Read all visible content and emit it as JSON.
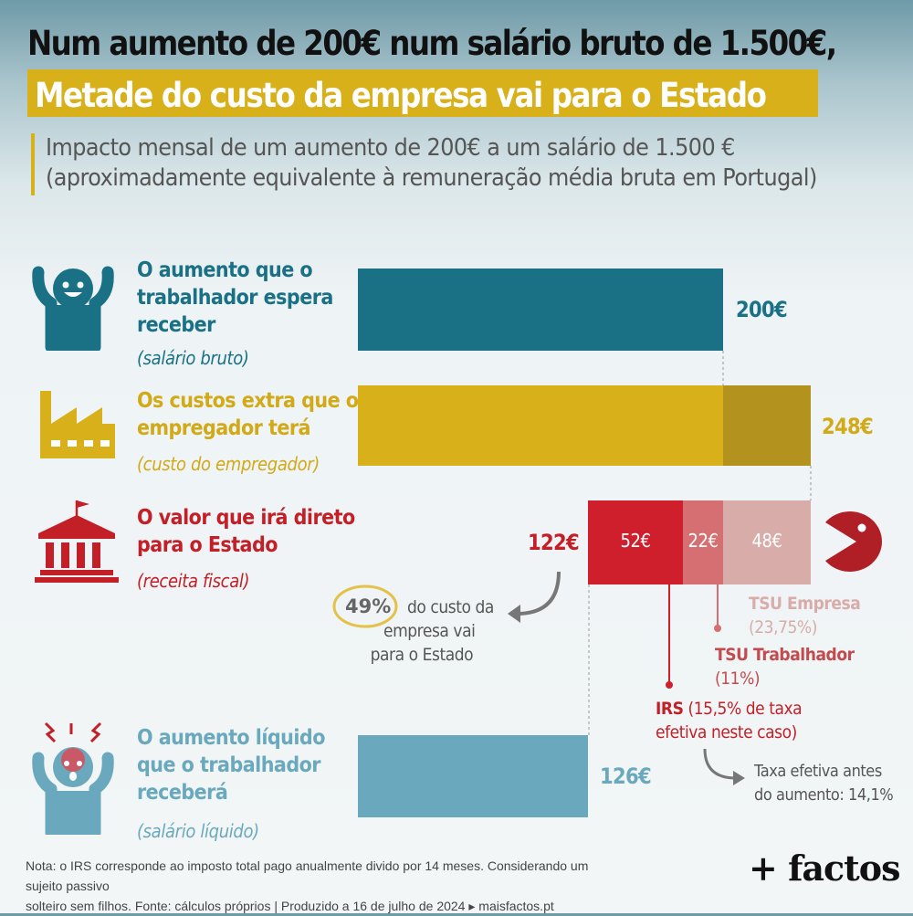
{
  "header": {
    "title_line1": "Num aumento de 200€ num salário bruto de 1.500€,",
    "title_line2": "Metade do custo da empresa vai para o Estado",
    "subtitle_line1": "Impacto mensal de um aumento de 200€ a um salário de 1.500 €",
    "subtitle_line2": "(aproximadamente equivalente à remuneração média bruta em Portugal)"
  },
  "rows": {
    "gross": {
      "line1": "O aumento que o",
      "line2": "trabalhador espera",
      "line3": "receber",
      "sub": "(salário bruto)",
      "value_label": "200€"
    },
    "employer": {
      "line1": "Os custos extra que o",
      "line2": "empregador terá",
      "sub": "(custo do empregador)",
      "value_label": "248€"
    },
    "state": {
      "line1": "O valor que irá direto",
      "line2": "para o Estado",
      "sub": "(receita fiscal)",
      "value_label": "122€"
    },
    "net": {
      "line1": "O aumento líquido",
      "line2": "que o trabalhador",
      "line3": "receberá",
      "sub": "(salário líquido)",
      "value_label": "126€"
    }
  },
  "segments": {
    "irs": "52€",
    "tsu_worker": "22€",
    "tsu_company": "48€"
  },
  "annotations": {
    "pct": "49%",
    "pct_text1": "do custo da",
    "pct_text2": "empresa vai",
    "pct_text3": "para o Estado",
    "tsu_company_name": "TSU Empresa",
    "tsu_company_rate": "(23,75%)",
    "tsu_worker_name": "TSU Trabalhador",
    "tsu_worker_rate": "(11%)",
    "irs_name": "IRS",
    "irs_rate1": "(15,5% de taxa",
    "irs_rate2": "efetiva neste caso)",
    "before1": "Taxa efetiva antes",
    "before2": "do aumento: 14,1%"
  },
  "footer": {
    "note_line1": "Nota: o IRS corresponde ao imposto total pago anualmente divido por 14 meses. Considerando um sujeito passivo",
    "note_line2": "solteiro sem filhos. Fonte: cálculos próprios  |  Produzido a 16 de julho de 2024 ▸ maisfactos.pt",
    "brand": "+ factos"
  },
  "colors": {
    "gross": "#1a7186",
    "employer": "#d7b01a",
    "employer_extra": "#b3931d",
    "irs": "#d01f2c",
    "tsu_worker": "#d56f71",
    "tsu_company": "#d7aca9",
    "net": "#6aa9bd",
    "state_text": "#c31f27"
  },
  "chart_data": {
    "type": "bar",
    "categories": [
      "O aumento que o trabalhador espera receber",
      "Os custos extra que o empregador terá",
      "O valor que irá direto para o Estado",
      "O aumento líquido que o trabalhador receberá"
    ],
    "values": [
      200,
      248,
      122,
      126
    ],
    "components": {
      "employer": [
        {
          "name": "salário bruto",
          "value": 200
        },
        {
          "name": "TSU Empresa",
          "value": 48
        }
      ],
      "state": [
        {
          "name": "IRS",
          "value": 52
        },
        {
          "name": "TSU Trabalhador",
          "value": 22
        },
        {
          "name": "TSU Empresa",
          "value": 48
        }
      ]
    },
    "unit": "€"
  }
}
